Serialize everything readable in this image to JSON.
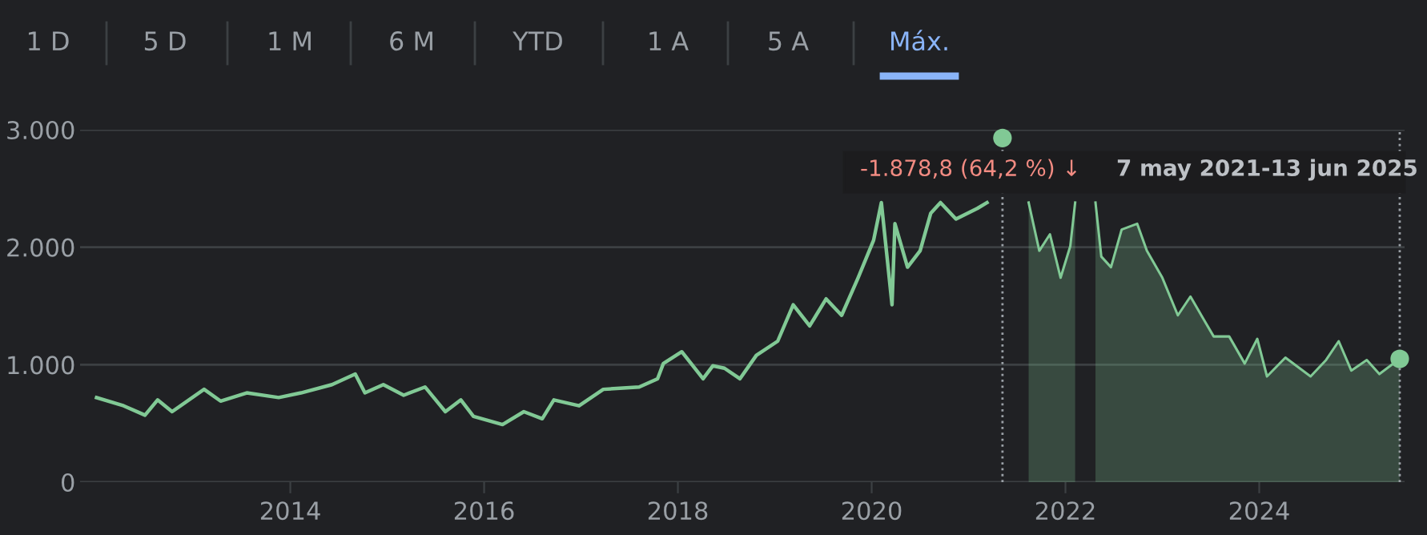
{
  "chart_data": {
    "type": "line",
    "series": [
      {
        "color": "#81c995",
        "x": [
          2012.0,
          2012.28,
          2012.5,
          2012.63,
          2012.78,
          2013.11,
          2013.28,
          2013.55,
          2013.88,
          2014.11,
          2014.43,
          2014.67,
          2014.77,
          2014.96,
          2015.17,
          2015.39,
          2015.6,
          2015.76,
          2015.89,
          2016.19,
          2016.41,
          2016.6,
          2016.72,
          2016.98,
          2017.23,
          2017.6,
          2017.79,
          2017.85,
          2018.04,
          2018.26,
          2018.36,
          2018.48,
          2018.64,
          2018.81,
          2019.03,
          2019.19,
          2019.36,
          2019.53,
          2019.69,
          2019.86,
          2020.02,
          2020.1,
          2020.21,
          2020.24,
          2020.37,
          2020.5,
          2020.61,
          2020.71,
          2020.87,
          2021.09,
          2021.19
        ],
        "values": [
          720,
          650,
          570,
          700,
          600,
          790,
          690,
          760,
          720,
          760,
          830,
          920,
          760,
          830,
          740,
          810,
          600,
          700,
          560,
          490,
          600,
          540,
          700,
          650,
          790,
          810,
          880,
          1010,
          1110,
          880,
          990,
          970,
          880,
          1080,
          1200,
          1510,
          1330,
          1560,
          1420,
          1740,
          2060,
          2380,
          1510,
          2200,
          1830,
          1970,
          2290,
          2380,
          2240,
          2330,
          2380
        ]
      },
      {
        "type": "area",
        "color": "#81c995",
        "x": [
          2021.62,
          2021.73,
          2021.84,
          2021.95,
          2022.05,
          2022.1,
          2022.2,
          2022.31,
          2022.37,
          2022.47,
          2022.58,
          2022.74,
          2022.84,
          2023.0,
          2023.16,
          2023.29,
          2023.43,
          2023.53,
          2023.69,
          2023.85,
          2023.98,
          2024.08,
          2024.27,
          2024.53,
          2024.69,
          2024.82,
          2024.95,
          2025.11,
          2025.24,
          2025.45
        ],
        "values": [
          2380,
          1970,
          2110,
          1740,
          2010,
          2380,
          null,
          2380,
          1920,
          1830,
          2150,
          2200,
          1970,
          1740,
          1420,
          1580,
          1380,
          1240,
          1240,
          1010,
          1220,
          900,
          1060,
          900,
          1040,
          1200,
          950,
          1040,
          920,
          1050
        ]
      },
      {
        "type": "scatter",
        "marker": "circle",
        "color": "#81c995",
        "x": [
          2021.35,
          2025.45
        ],
        "values": [
          2930,
          1050
        ]
      }
    ],
    "xlim": [
      2011.83,
      2025.5
    ],
    "xticks": [
      2014,
      2016,
      2018,
      2020,
      2022,
      2024
    ],
    "ylim": [
      0,
      3000
    ],
    "yticks": [
      {
        "value": 0,
        "label": "0"
      },
      {
        "value": 1000,
        "label": "1.000"
      },
      {
        "value": 2000,
        "label": "2.000"
      },
      {
        "value": 3000,
        "label": "3.000"
      }
    ],
    "grid": "y",
    "legend": false,
    "line_style": "solid",
    "ref_lines": [
      {
        "axis": "x",
        "value": 2021.35,
        "color": "#9aa0a6",
        "line_style": "dotted"
      },
      {
        "axis": "x",
        "value": 2025.45,
        "color": "#9aa0a6",
        "line_style": "dotted"
      }
    ],
    "annotations": [
      "1 D",
      "5 D",
      "1 M",
      "6 M",
      "YTD",
      "1 A",
      "5 A",
      "Máx.",
      "-1.878,8 (64,2 %) ↓",
      "7 may 2021-13 jun 2025"
    ]
  }
}
